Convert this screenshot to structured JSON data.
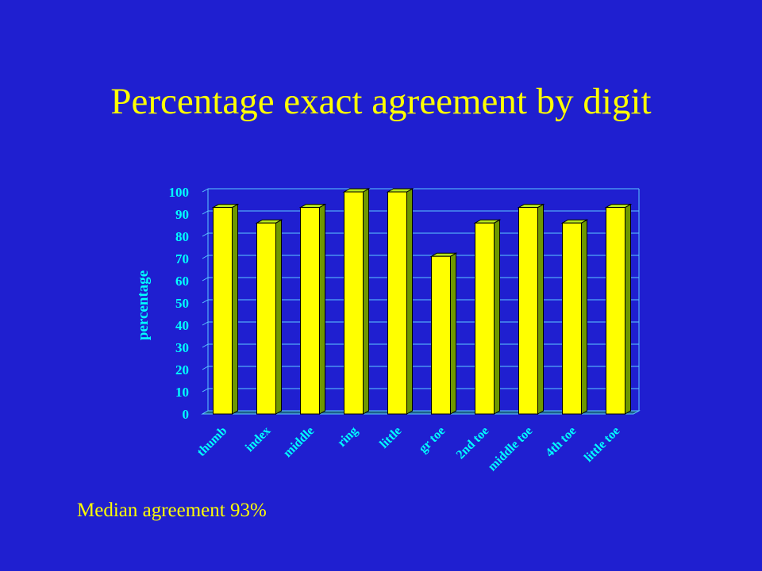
{
  "slide": {
    "title": "Percentage exact agreement by digit",
    "footnote": "Median agreement 93%"
  },
  "colors": {
    "background": "#1f1fd0",
    "title_text": "#ffff00",
    "axis_text": "#00ffff",
    "bar_front": "#ffff00",
    "bar_top": "#b5e61d",
    "bar_side": "#6f9800",
    "gridline": "#5cc8ff"
  },
  "chart_data": {
    "type": "bar",
    "title": "",
    "xlabel": "",
    "ylabel": "percentage",
    "categories": [
      "thumb",
      "index",
      "middle",
      "ring",
      "little",
      "gr toe",
      "2nd toe",
      "middle toe",
      "4th toe",
      "little toe"
    ],
    "values": [
      93,
      86,
      93,
      100,
      100,
      71,
      86,
      93,
      86,
      93
    ],
    "ylim": [
      0,
      100
    ],
    "yticks": [
      0,
      10,
      20,
      30,
      40,
      50,
      60,
      70,
      80,
      90,
      100
    ],
    "grid": true,
    "legend": "none",
    "style": "3d-columns"
  }
}
